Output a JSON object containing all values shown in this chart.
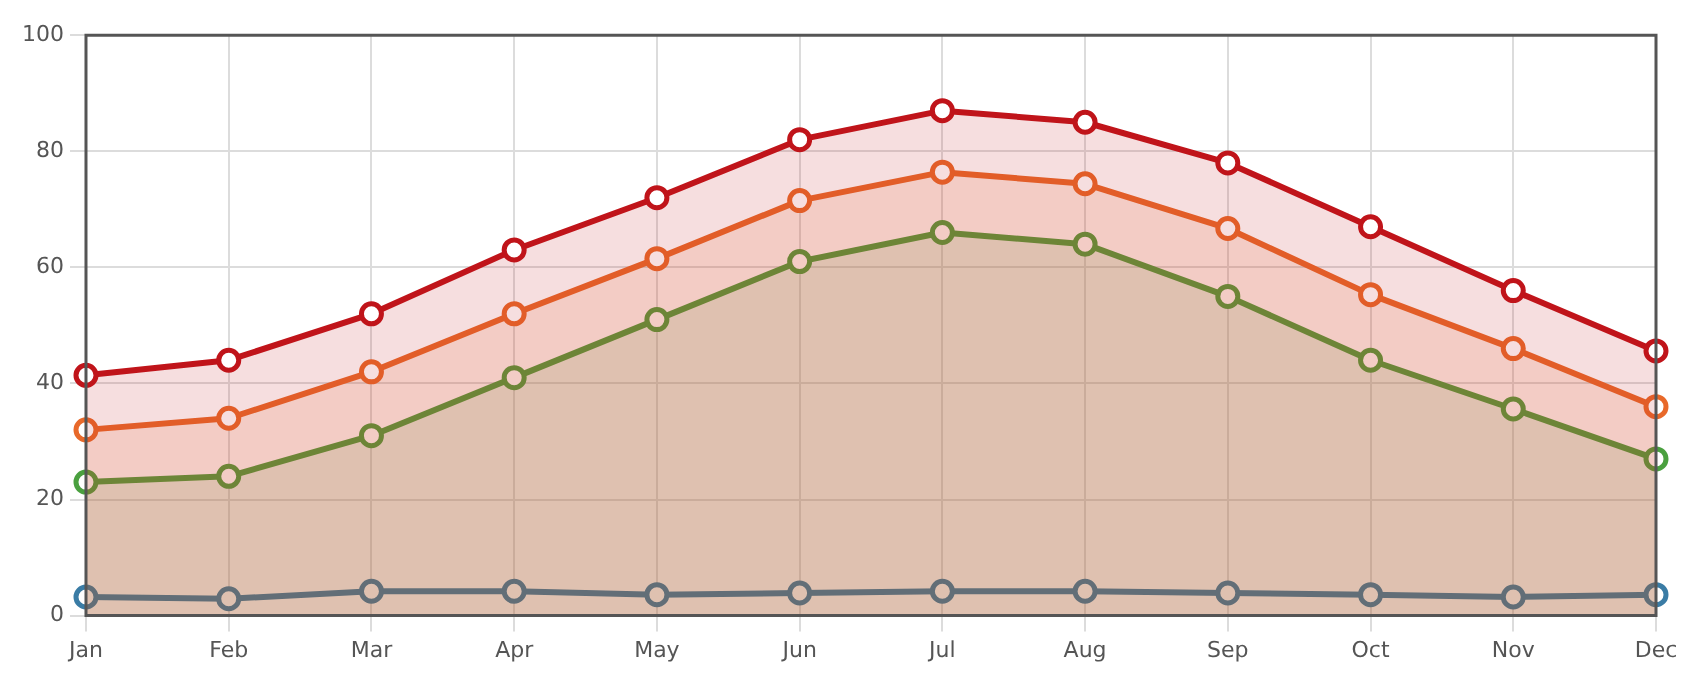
{
  "chart_data": {
    "type": "area",
    "categories": [
      "Jan",
      "Feb",
      "Mar",
      "Apr",
      "May",
      "Jun",
      "Jul",
      "Aug",
      "Sep",
      "Oct",
      "Nov",
      "Dec"
    ],
    "series": [
      {
        "color": "#c0141a",
        "values": [
          41.4,
          44,
          52,
          63,
          72,
          82,
          87,
          85,
          78,
          67,
          56,
          45.6
        ]
      },
      {
        "color": "#e8692a",
        "values": [
          32,
          34,
          42,
          52,
          61.5,
          71.5,
          76.4,
          74.4,
          66.7,
          55.3,
          46,
          36
        ]
      },
      {
        "color": "#4aa03f",
        "values": [
          23,
          24,
          31,
          41,
          51,
          61,
          66,
          64,
          55,
          44,
          35.6,
          27
        ]
      },
      {
        "type": "line",
        "color": "#3a7ca5",
        "values": [
          3.2,
          2.9,
          4.2,
          4.2,
          3.6,
          3.9,
          4.2,
          4.2,
          3.9,
          3.6,
          3.2,
          3.6
        ]
      }
    ],
    "ylim": [
      0,
      100
    ],
    "yticks": [
      0,
      20,
      40,
      60,
      80,
      100
    ],
    "grid": true,
    "legend": false,
    "marker": "circle",
    "line_style": "solid"
  }
}
